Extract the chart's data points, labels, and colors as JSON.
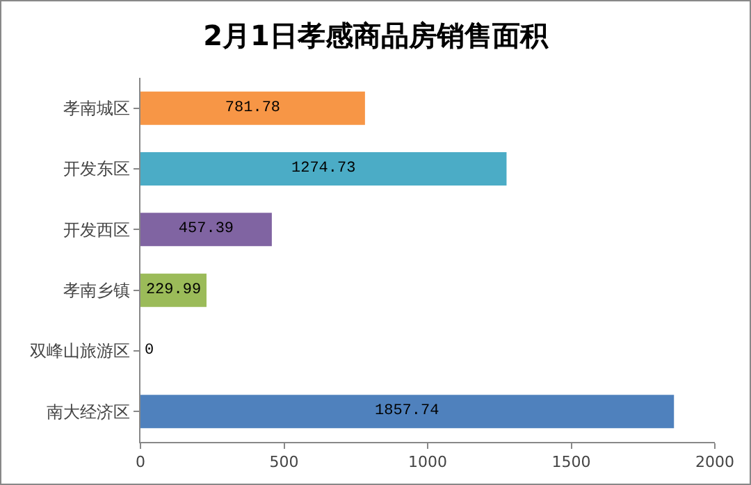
{
  "chart_data": {
    "type": "bar",
    "orientation": "horizontal",
    "title": "2月1日孝感商品房销售面积",
    "categories": [
      "孝南城区",
      "开发东区",
      "开发西区",
      "孝南乡镇",
      "双峰山旅游区",
      "南大经济区"
    ],
    "values": [
      781.78,
      1274.73,
      457.39,
      229.99,
      0,
      1857.74
    ],
    "colors": [
      "#f79646",
      "#4bacc6",
      "#8064a2",
      "#9bbb59",
      "#4f81bd",
      "#4f81bd"
    ],
    "xlim": [
      0,
      2000
    ],
    "xticks": [
      0,
      500,
      1000,
      1500,
      2000
    ],
    "data_labels": true
  }
}
